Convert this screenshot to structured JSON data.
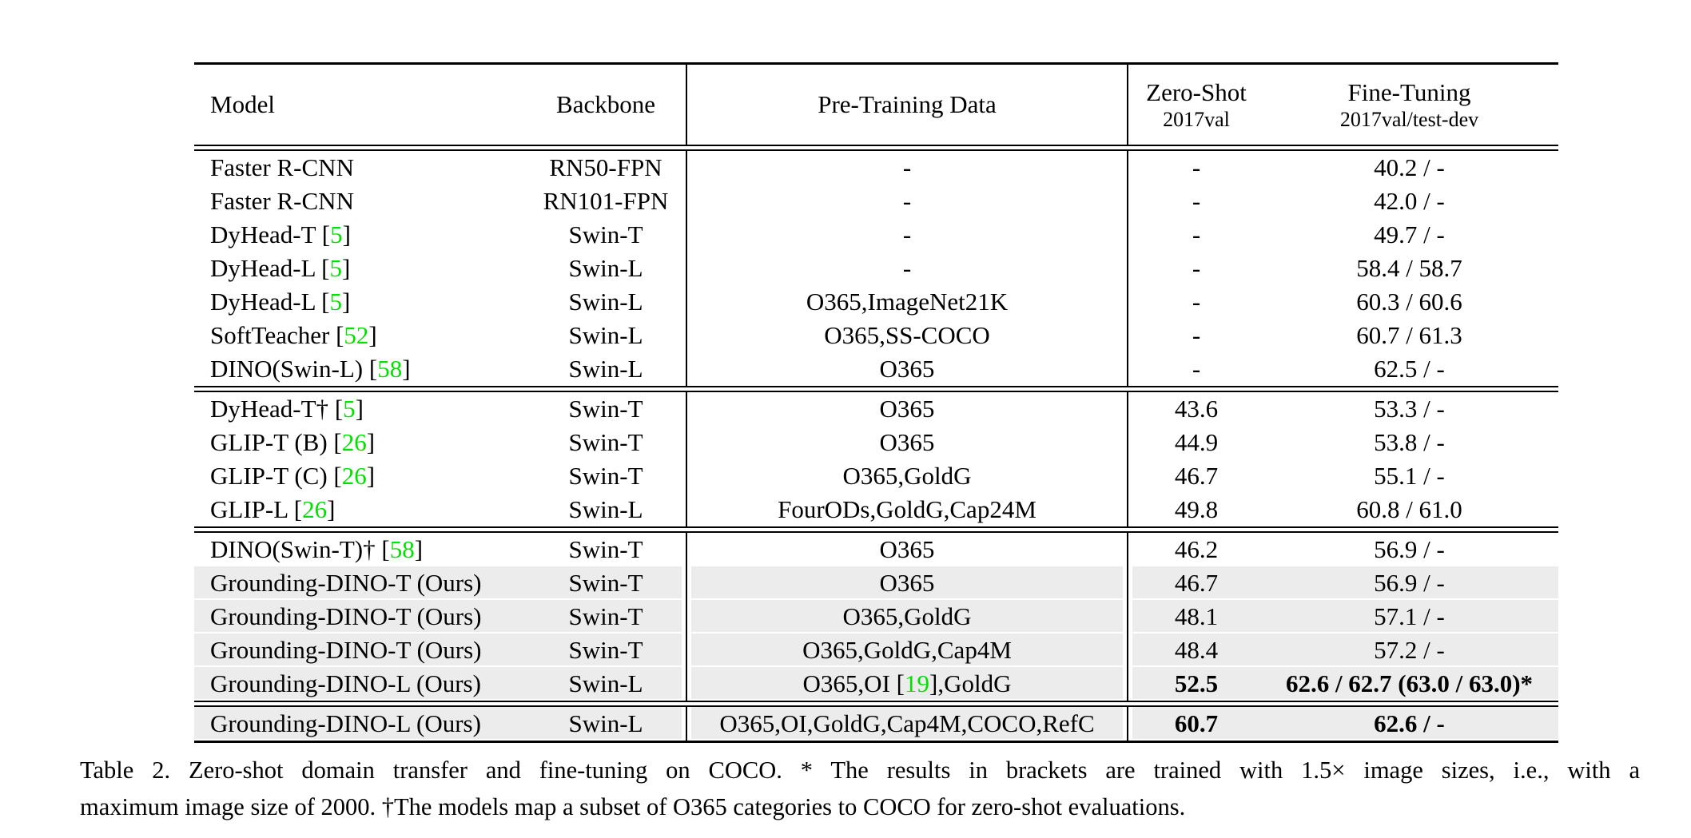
{
  "table": {
    "title_hidden": "",
    "columns": {
      "model": "Model",
      "backbone": "Backbone",
      "pretrain": "Pre-Training Data",
      "zeroshot_line1": "Zero-Shot",
      "zeroshot_line2": "2017val",
      "finetune_line1": "Fine-Tuning",
      "finetune_line2": "2017val/test-dev"
    },
    "citation_color": "#00e100",
    "highlight_color": "#ececec",
    "sections": [
      {
        "rows": [
          {
            "model": "Faster R-CNN",
            "backbone": "RN50-FPN",
            "pretrain": "-",
            "zeroshot": "-",
            "finetune": "40.2 / -"
          },
          {
            "model": "Faster R-CNN",
            "backbone": "RN101-FPN",
            "pretrain": "-",
            "zeroshot": "-",
            "finetune": "42.0 / -"
          },
          {
            "model": "DyHead-T",
            "cite": "5",
            "backbone": "Swin-T",
            "pretrain": "-",
            "zeroshot": "-",
            "finetune": "49.7 / -"
          },
          {
            "model": "DyHead-L",
            "cite": "5",
            "backbone": "Swin-L",
            "pretrain": "-",
            "zeroshot": "-",
            "finetune": "58.4 / 58.7"
          },
          {
            "model": "DyHead-L",
            "cite": "5",
            "backbone": "Swin-L",
            "pretrain": "O365,ImageNet21K",
            "zeroshot": "-",
            "finetune": "60.3 / 60.6"
          },
          {
            "model": "SoftTeacher",
            "cite": "52",
            "backbone": "Swin-L",
            "pretrain": "O365,SS-COCO",
            "zeroshot": "-",
            "finetune": "60.7 / 61.3"
          },
          {
            "model": "DINO(Swin-L)",
            "cite": "58",
            "backbone": "Swin-L",
            "pretrain": "O365",
            "zeroshot": "-",
            "finetune": "62.5 / -"
          }
        ]
      },
      {
        "rows": [
          {
            "model": "DyHead-T†",
            "cite": "5",
            "backbone": "Swin-T",
            "pretrain": "O365",
            "zeroshot": "43.6",
            "finetune": "53.3 / -"
          },
          {
            "model": "GLIP-T (B)",
            "cite": "26",
            "backbone": "Swin-T",
            "pretrain": "O365",
            "zeroshot": "44.9",
            "finetune": "53.8 / -"
          },
          {
            "model": "GLIP-T (C)",
            "cite": "26",
            "backbone": "Swin-T",
            "pretrain": "O365,GoldG",
            "zeroshot": "46.7",
            "finetune": "55.1 / -"
          },
          {
            "model": "GLIP-L",
            "cite": "26",
            "backbone": "Swin-L",
            "pretrain": "FourODs,GoldG,Cap24M",
            "zeroshot": "49.8",
            "finetune": "60.8 / 61.0"
          }
        ]
      },
      {
        "rows": [
          {
            "model": "DINO(Swin-T)†",
            "cite": "58",
            "backbone": "Swin-T",
            "pretrain": "O365",
            "zeroshot": "46.2",
            "finetune": "56.9 / -"
          },
          {
            "model": "Grounding-DINO-T (Ours)",
            "backbone": "Swin-T",
            "pretrain": "O365",
            "zeroshot": "46.7",
            "finetune": "56.9 / -",
            "hl": true
          },
          {
            "model": "Grounding-DINO-T (Ours)",
            "backbone": "Swin-T",
            "pretrain": "O365,GoldG",
            "zeroshot": "48.1",
            "finetune": "57.1 / -",
            "hl": true
          },
          {
            "model": "Grounding-DINO-T (Ours)",
            "backbone": "Swin-T",
            "pretrain": "O365,GoldG,Cap4M",
            "zeroshot": "48.4",
            "finetune": "57.2 / -",
            "hl": true
          },
          {
            "model": "Grounding-DINO-L (Ours)",
            "backbone": "Swin-L",
            "pretrain_parts": [
              {
                "t": "O365,OI "
              },
              {
                "t": "19",
                "cite": true
              },
              {
                "t": ",GoldG"
              }
            ],
            "zeroshot": "52.5",
            "finetune": "62.6 / 62.7 (63.0 / 63.0)*",
            "bold": true,
            "hl": true
          }
        ]
      },
      {
        "rows": [
          {
            "model": "Grounding-DINO-L (Ours)",
            "backbone": "Swin-L",
            "pretrain": "O365,OI,GoldG,Cap4M,COCO,RefC",
            "zeroshot": "60.7",
            "finetune": "62.6 / -",
            "bold": true,
            "hl": true
          }
        ]
      }
    ]
  },
  "caption": {
    "line1": "Table 2.  Zero-shot domain transfer and fine-tuning on COCO. * The results in brackets are trained with 1.5× image sizes, i.e., with a",
    "line2": "maximum image size of 2000. †The models map a subset of O365 categories to COCO for zero-shot evaluations."
  }
}
